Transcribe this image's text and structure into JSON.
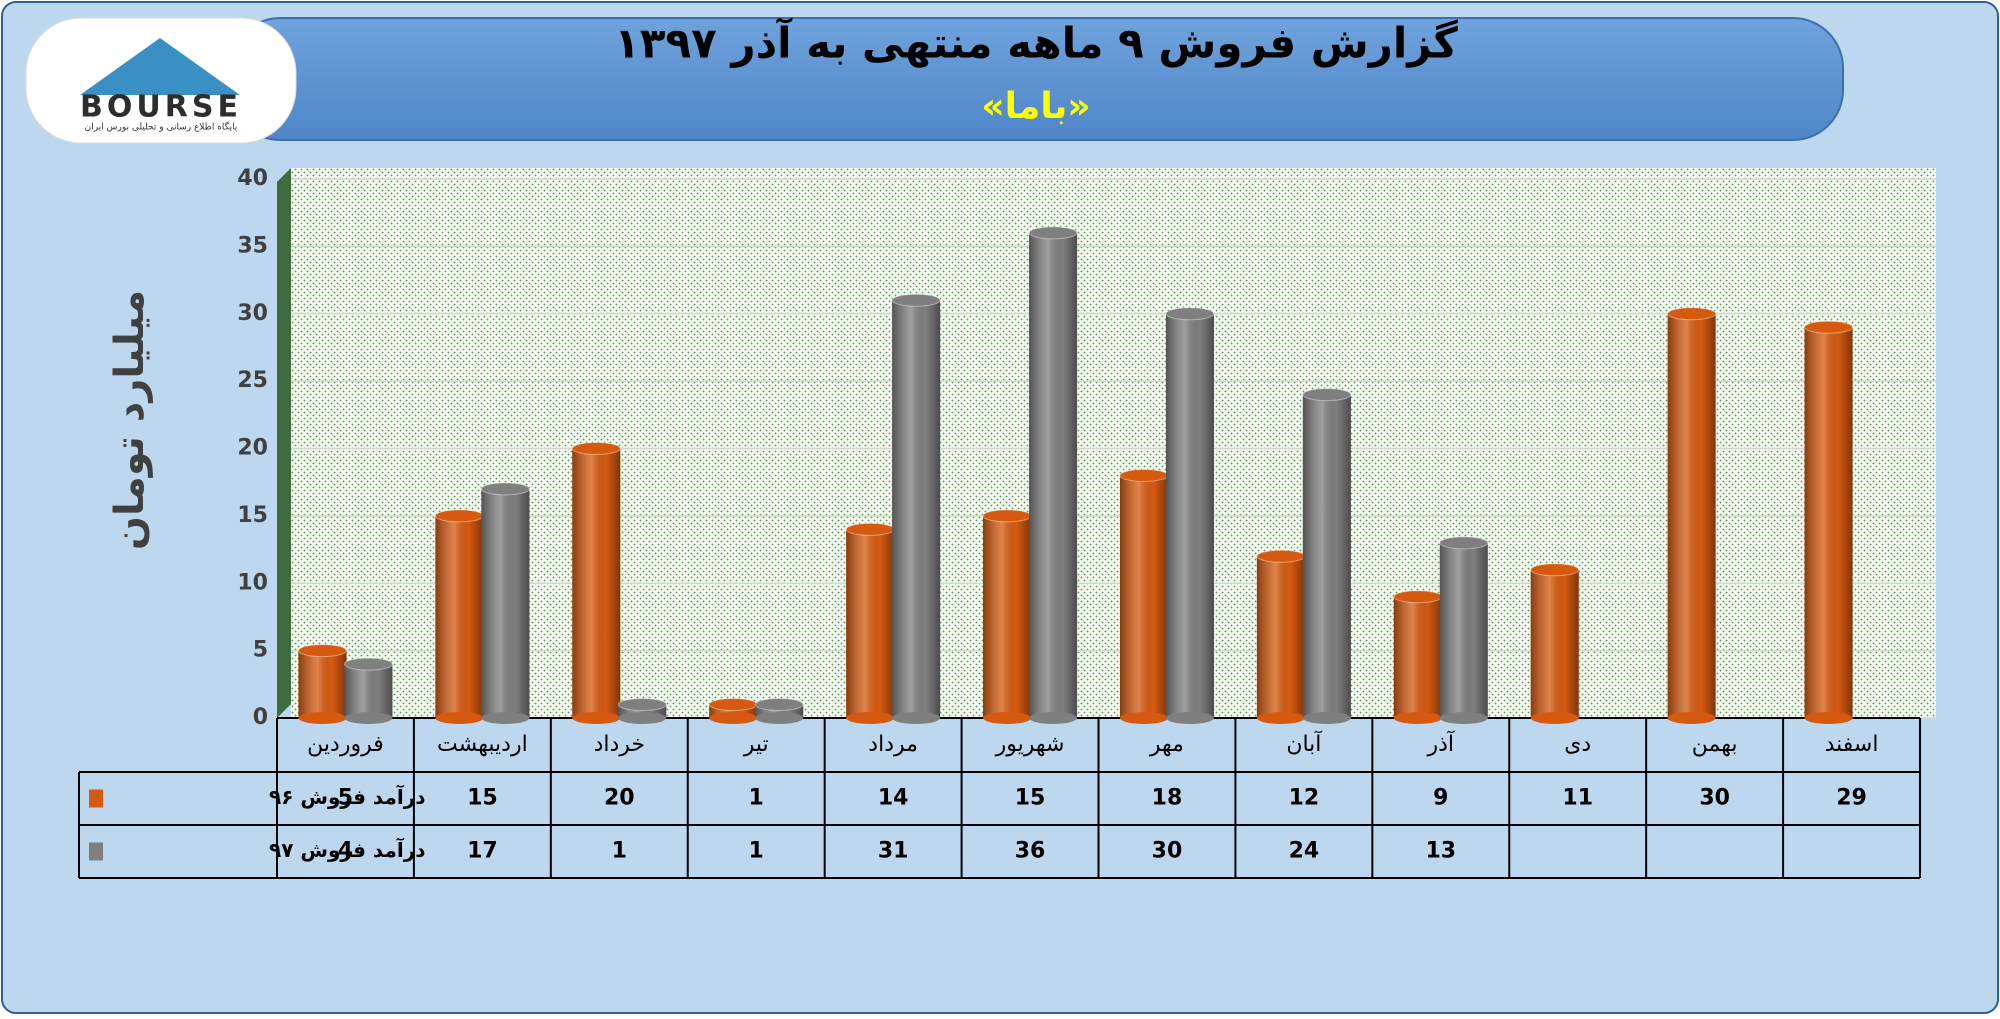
{
  "logo": {
    "text": "BOURSE",
    "tagline": "پایگاه اطلاع رسانی و تحلیلی بورس ایران"
  },
  "chart_data": {
    "type": "bar",
    "title": "گزارش فروش ۹ ماهه منتهی به آذر ۱۳۹۷",
    "subtitle": "«باما»",
    "y_label": "میلیارد تومان",
    "categories": [
      "فروردین",
      "اردیبهشت",
      "خرداد",
      "تیر",
      "مرداد",
      "شهریور",
      "مهر",
      "آبان",
      "آذر",
      "دی",
      "بهمن",
      "اسفند"
    ],
    "series": [
      {
        "name": "درآمد فروش ۹۶",
        "color": "#d55a10",
        "values": [
          5,
          15,
          20,
          1,
          14,
          15,
          18,
          12,
          9,
          11,
          30,
          29
        ]
      },
      {
        "name": "درآمد فروش ۹۷",
        "color": "#7f7f7f",
        "values": [
          4,
          17,
          1,
          1,
          31,
          36,
          30,
          24,
          13,
          null,
          null,
          null
        ]
      }
    ],
    "ylim": [
      0,
      40
    ],
    "yticks": [
      0,
      5,
      10,
      15,
      20,
      25,
      30,
      35,
      40
    ],
    "grid": true
  }
}
